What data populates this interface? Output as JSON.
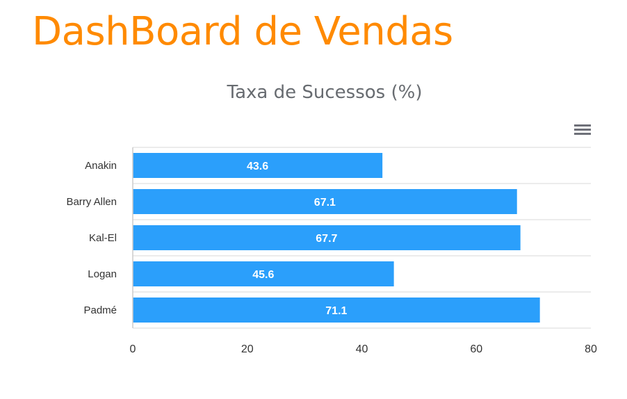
{
  "page": {
    "title": "DashBoard de Vendas"
  },
  "toolbar": {
    "menu_icon": "hamburger-menu-icon"
  },
  "colors": {
    "title": "#ff8a00",
    "bar": "#2b9ffb",
    "chart_title": "#676b70"
  },
  "chart_data": {
    "type": "bar",
    "orientation": "horizontal",
    "title": "Taxa de Sucessos (%)",
    "categories": [
      "Anakin",
      "Barry Allen",
      "Kal-El",
      "Logan",
      "Padmé"
    ],
    "values": [
      43.6,
      67.1,
      67.7,
      45.6,
      71.1
    ],
    "data_labels": [
      "43.6",
      "67.1",
      "67.7",
      "45.6",
      "71.1"
    ],
    "xlim": [
      0,
      80
    ],
    "xticks": [
      "0",
      "20",
      "40",
      "60",
      "80"
    ],
    "xlabel": "",
    "ylabel": "",
    "grid": true,
    "legend": "none"
  }
}
